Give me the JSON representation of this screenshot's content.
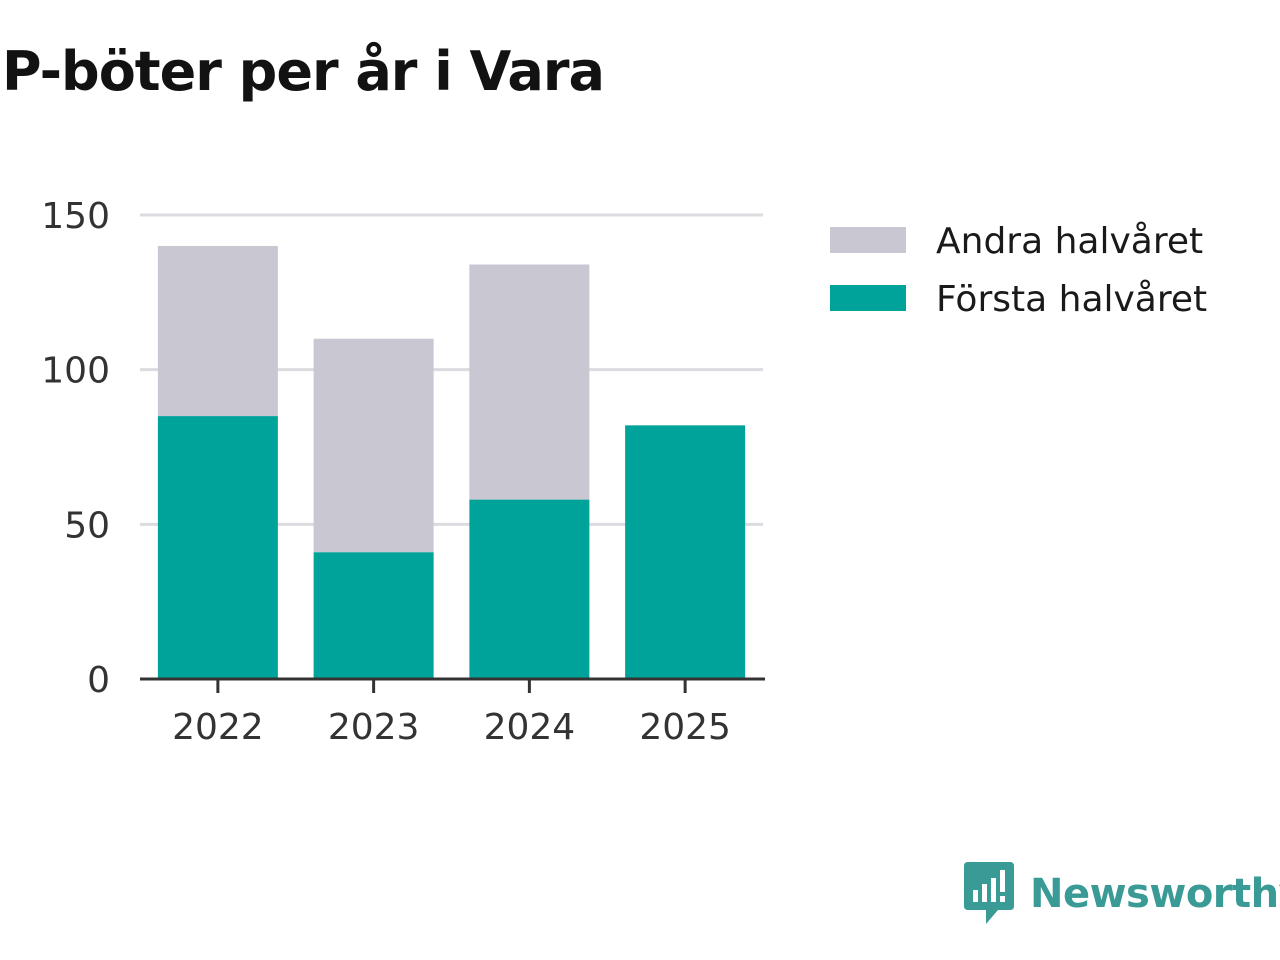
{
  "chart_data": {
    "type": "bar",
    "stacked": true,
    "title": "P-böter per år i Vara",
    "categories": [
      "2022",
      "2023",
      "2024",
      "2025"
    ],
    "series": [
      {
        "name": "Första halvåret",
        "values": [
          85,
          41,
          58,
          82
        ],
        "color": "#00a39a"
      },
      {
        "name": "Andra halvåret",
        "values": [
          55,
          69,
          76,
          0
        ],
        "color": "#c8c7d2"
      }
    ],
    "ylim": [
      0,
      150
    ],
    "yticks": [
      0,
      50,
      100,
      150
    ],
    "grid": true,
    "legend_position": "right",
    "legend_order": [
      "Andra halvåret",
      "Första halvåret"
    ],
    "xlabel": "",
    "ylabel": ""
  },
  "branding": {
    "name": "Newsworthy",
    "logo_icon": "newsworthy-logo-icon",
    "color": "#3a9a96"
  }
}
